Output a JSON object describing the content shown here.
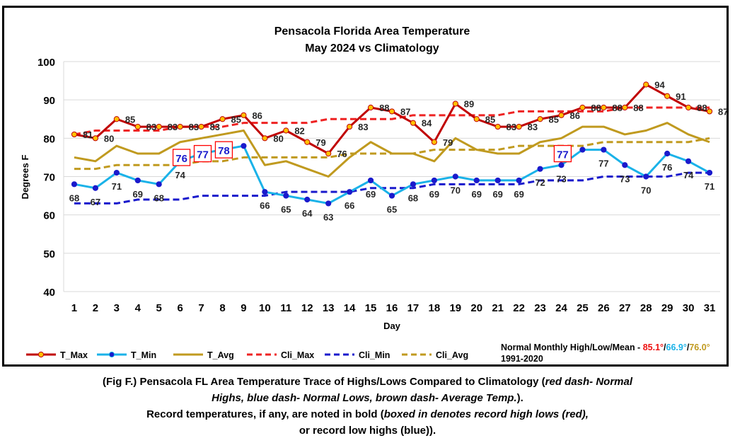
{
  "chart_data": {
    "type": "line",
    "title": "Pensacola Florida Area Temperature",
    "subtitle": "May 2024 vs Climatology",
    "xlabel": "Day",
    "ylabel": "Degrees F",
    "ylim": [
      40,
      100
    ],
    "yticks": [
      40,
      50,
      60,
      70,
      80,
      90,
      100
    ],
    "grid": true,
    "legend_position": "bottom",
    "x": [
      1,
      2,
      3,
      4,
      5,
      6,
      7,
      8,
      9,
      10,
      11,
      12,
      13,
      14,
      15,
      16,
      17,
      18,
      19,
      20,
      21,
      22,
      23,
      24,
      25,
      26,
      27,
      28,
      29,
      30,
      31
    ],
    "series": [
      {
        "name": "T_Max",
        "color": "#c00000",
        "style": "solid-marker",
        "labeled": true,
        "values": [
          81,
          80,
          85,
          83,
          83,
          83,
          83,
          85,
          86,
          80,
          82,
          79,
          76,
          83,
          88,
          87,
          84,
          79,
          89,
          85,
          83,
          83,
          85,
          86,
          88,
          88,
          88,
          94,
          91,
          88,
          87
        ]
      },
      {
        "name": "T_Min",
        "color": "#1ab2e8",
        "style": "solid-marker",
        "labeled": true,
        "values": [
          68,
          67,
          71,
          69,
          68,
          74,
          76,
          77,
          78,
          66,
          65,
          64,
          63,
          66,
          69,
          65,
          68,
          69,
          70,
          69,
          69,
          69,
          72,
          73,
          77,
          77,
          73,
          70,
          76,
          74,
          71
        ]
      },
      {
        "name": "T_Avg",
        "color": "#c09a1f",
        "style": "solid",
        "values": [
          75,
          74,
          78,
          76,
          76,
          79,
          80,
          81,
          82,
          73,
          74,
          72,
          70,
          75,
          79,
          76,
          76,
          74,
          80,
          77,
          76,
          76,
          79,
          80,
          83,
          83,
          81,
          82,
          84,
          81,
          79
        ]
      },
      {
        "name": "Cli_Max",
        "color": "#ee2222",
        "style": "dash",
        "values": [
          81,
          82,
          82,
          82,
          82,
          83,
          83,
          83,
          84,
          84,
          84,
          84,
          85,
          85,
          85,
          85,
          86,
          86,
          86,
          86,
          86,
          87,
          87,
          87,
          87,
          87,
          88,
          88,
          88,
          88,
          88
        ]
      },
      {
        "name": "Cli_Min",
        "color": "#1a1acc",
        "style": "dash",
        "values": [
          63,
          63,
          63,
          64,
          64,
          64,
          65,
          65,
          65,
          65,
          66,
          66,
          66,
          66,
          67,
          67,
          67,
          68,
          68,
          68,
          68,
          68,
          69,
          69,
          69,
          70,
          70,
          70,
          70,
          71,
          71
        ]
      },
      {
        "name": "Cli_Avg",
        "color": "#c09a1f",
        "style": "dash",
        "values": [
          72,
          72,
          73,
          73,
          73,
          73,
          74,
          74,
          75,
          75,
          75,
          75,
          75,
          76,
          76,
          76,
          76,
          77,
          77,
          77,
          77,
          78,
          78,
          78,
          78,
          79,
          79,
          79,
          79,
          79,
          80
        ]
      }
    ],
    "record_boxes": [
      {
        "day": 7,
        "value": 76,
        "label": "76"
      },
      {
        "day": 8,
        "value": 77,
        "label": "77"
      },
      {
        "day": 9,
        "value": 78,
        "label": "78"
      },
      {
        "day": 25,
        "value": 77,
        "label": "77"
      }
    ]
  },
  "normals": {
    "label": "Normal Monthly High/Low/Mean - ",
    "high": "85.1°",
    "low": "66.9°",
    "mean": "76.0°",
    "sep": "/",
    "high_color": "#ee1111",
    "low_color": "#1ab2e8",
    "mean_color": "#c09a1f",
    "period": "1991-2020"
  },
  "caption": {
    "line1_a": "(Fig F.) Pensacola FL Area Temperature Trace of Highs/Lows Compared to Climatology (",
    "line1_i": "red dash- Normal",
    "line2_i": "Highs, blue dash- Normal Lows, brown dash- Average Temp.",
    "line2_b": ").",
    "line3_a": "Record temperatures, if any, are noted in bold (",
    "line3_i": "boxed in denotes record high lows (red),",
    "line4": "or record low highs (blue))."
  }
}
